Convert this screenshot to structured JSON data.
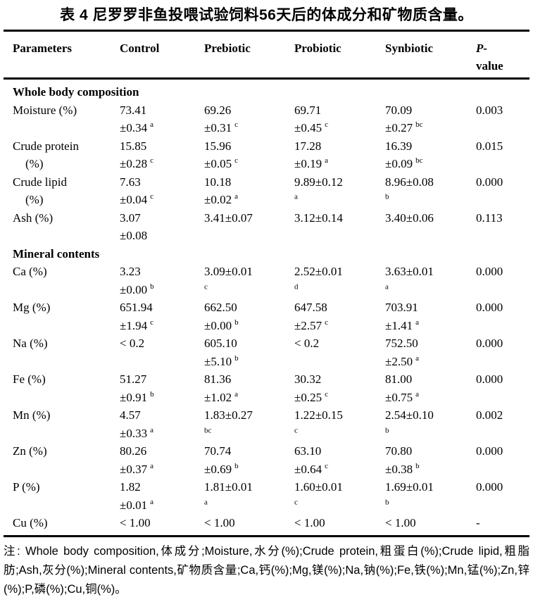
{
  "title": "表 4 尼罗罗非鱼投喂试验饲料56天后的体成分和矿物质含量。",
  "table": {
    "columns": [
      "Parameters",
      "Control",
      "Prebiotic",
      "Probiotic",
      "Synbiotic"
    ],
    "p_header": {
      "line1": "P-",
      "line2": "value"
    },
    "rows": [
      {
        "type": "section",
        "label": "Whole body composition"
      },
      {
        "type": "data",
        "param": [
          "Moisture (%)"
        ],
        "cells": [
          [
            [
              "73.41",
              ""
            ],
            [
              "±0.34",
              "a"
            ]
          ],
          [
            [
              "69.26",
              ""
            ],
            [
              "±0.31",
              "c"
            ]
          ],
          [
            [
              "69.71",
              ""
            ],
            [
              "±0.45",
              "c"
            ]
          ],
          [
            [
              "70.09",
              ""
            ],
            [
              "±0.27",
              "bc"
            ]
          ]
        ],
        "p": "0.003"
      },
      {
        "type": "data",
        "param": [
          "Crude protein",
          "(%)"
        ],
        "cells": [
          [
            [
              "15.85",
              ""
            ],
            [
              "±0.28",
              "c"
            ]
          ],
          [
            [
              "15.96",
              ""
            ],
            [
              "±0.05",
              "c"
            ]
          ],
          [
            [
              "17.28",
              ""
            ],
            [
              "±0.19",
              "a"
            ]
          ],
          [
            [
              "16.39",
              ""
            ],
            [
              "±0.09",
              "bc"
            ]
          ]
        ],
        "p": "0.015"
      },
      {
        "type": "data",
        "param": [
          "Crude lipid",
          "(%)"
        ],
        "cells": [
          [
            [
              "7.63",
              ""
            ],
            [
              "±0.04",
              "c"
            ]
          ],
          [
            [
              "10.18",
              ""
            ],
            [
              "±0.02",
              "a"
            ]
          ],
          [
            [
              "9.89±0.12",
              ""
            ],
            [
              "",
              "a"
            ]
          ],
          [
            [
              "8.96±0.08",
              ""
            ],
            [
              "",
              "b"
            ]
          ]
        ],
        "p": "0.000"
      },
      {
        "type": "data",
        "param": [
          "Ash (%)"
        ],
        "cells": [
          [
            [
              "3.07",
              ""
            ],
            [
              "±0.08",
              ""
            ]
          ],
          [
            [
              "3.41±0.07",
              ""
            ]
          ],
          [
            [
              "3.12±0.14",
              ""
            ]
          ],
          [
            [
              "3.40±0.06",
              ""
            ]
          ]
        ],
        "p": "0.113"
      },
      {
        "type": "section",
        "label": "Mineral contents"
      },
      {
        "type": "data",
        "param": [
          "Ca (%)"
        ],
        "cells": [
          [
            [
              "3.23",
              ""
            ],
            [
              "±0.00",
              "b"
            ]
          ],
          [
            [
              "3.09±0.01",
              ""
            ],
            [
              "",
              "c"
            ]
          ],
          [
            [
              "2.52±0.01",
              ""
            ],
            [
              "",
              "d"
            ]
          ],
          [
            [
              "3.63±0.01",
              ""
            ],
            [
              "",
              "a"
            ]
          ]
        ],
        "p": "0.000"
      },
      {
        "type": "data",
        "param": [
          "Mg (%)"
        ],
        "cells": [
          [
            [
              "651.94",
              ""
            ],
            [
              "±1.94",
              "c"
            ]
          ],
          [
            [
              "662.50",
              ""
            ],
            [
              "±0.00",
              "b"
            ]
          ],
          [
            [
              "647.58",
              ""
            ],
            [
              "±2.57",
              "c"
            ]
          ],
          [
            [
              "703.91",
              ""
            ],
            [
              "±1.41",
              "a"
            ]
          ]
        ],
        "p": "0.000"
      },
      {
        "type": "data",
        "param": [
          "Na (%)"
        ],
        "cells": [
          [
            [
              "< 0.2",
              ""
            ]
          ],
          [
            [
              "605.10",
              ""
            ],
            [
              "±5.10",
              "b"
            ]
          ],
          [
            [
              "< 0.2",
              ""
            ]
          ],
          [
            [
              "752.50",
              ""
            ],
            [
              "±2.50",
              "a"
            ]
          ]
        ],
        "p": "0.000"
      },
      {
        "type": "data",
        "param": [
          "Fe (%)"
        ],
        "cells": [
          [
            [
              "51.27",
              ""
            ],
            [
              "±0.91",
              "b"
            ]
          ],
          [
            [
              "81.36",
              ""
            ],
            [
              "±1.02",
              "a"
            ]
          ],
          [
            [
              "30.32",
              ""
            ],
            [
              "±0.25",
              "c"
            ]
          ],
          [
            [
              "81.00",
              ""
            ],
            [
              "±0.75",
              "a"
            ]
          ]
        ],
        "p": "0.000"
      },
      {
        "type": "data",
        "param": [
          "Mn (%)"
        ],
        "cells": [
          [
            [
              "4.57",
              ""
            ],
            [
              "±0.33",
              "a"
            ]
          ],
          [
            [
              "1.83±0.27",
              ""
            ],
            [
              "",
              "bc"
            ]
          ],
          [
            [
              "1.22±0.15",
              ""
            ],
            [
              "",
              "c"
            ]
          ],
          [
            [
              "2.54±0.10",
              ""
            ],
            [
              "",
              "b"
            ]
          ]
        ],
        "p": "0.002"
      },
      {
        "type": "data",
        "param": [
          "Zn (%)"
        ],
        "cells": [
          [
            [
              "80.26",
              ""
            ],
            [
              "±0.37",
              "a"
            ]
          ],
          [
            [
              "70.74",
              ""
            ],
            [
              "±0.69",
              "b"
            ]
          ],
          [
            [
              "63.10",
              ""
            ],
            [
              "±0.64",
              "c"
            ]
          ],
          [
            [
              "70.80",
              ""
            ],
            [
              "±0.38",
              "b"
            ]
          ]
        ],
        "p": "0.000"
      },
      {
        "type": "data",
        "param": [
          "P (%)"
        ],
        "cells": [
          [
            [
              "1.82",
              ""
            ],
            [
              "±0.01",
              "a"
            ]
          ],
          [
            [
              "1.81±0.01",
              ""
            ],
            [
              "",
              "a"
            ]
          ],
          [
            [
              "1.60±0.01",
              ""
            ],
            [
              "",
              "c"
            ]
          ],
          [
            [
              "1.69±0.01",
              ""
            ],
            [
              "",
              "b"
            ]
          ]
        ],
        "p": "0.000"
      },
      {
        "type": "data",
        "param": [
          "Cu (%)"
        ],
        "cells": [
          [
            [
              "< 1.00",
              ""
            ]
          ],
          [
            [
              "< 1.00",
              ""
            ]
          ],
          [
            [
              "< 1.00",
              ""
            ]
          ],
          [
            [
              "< 1.00",
              ""
            ]
          ]
        ],
        "p": "-"
      }
    ]
  },
  "note": "注: Whole body composition,体成分;Moisture,水分(%);Crude protein,粗蛋白(%);Crude lipid,粗脂肪;Ash,灰分(%);Mineral contents,矿物质含量;Ca,钙(%);Mg,镁(%);Na,钠(%);Fe,铁(%);Mn,锰(%);Zn,锌(%);P,磷(%);Cu,铜(%)。",
  "colors": {
    "text": "#000000",
    "background": "#ffffff",
    "rule": "#000000"
  }
}
